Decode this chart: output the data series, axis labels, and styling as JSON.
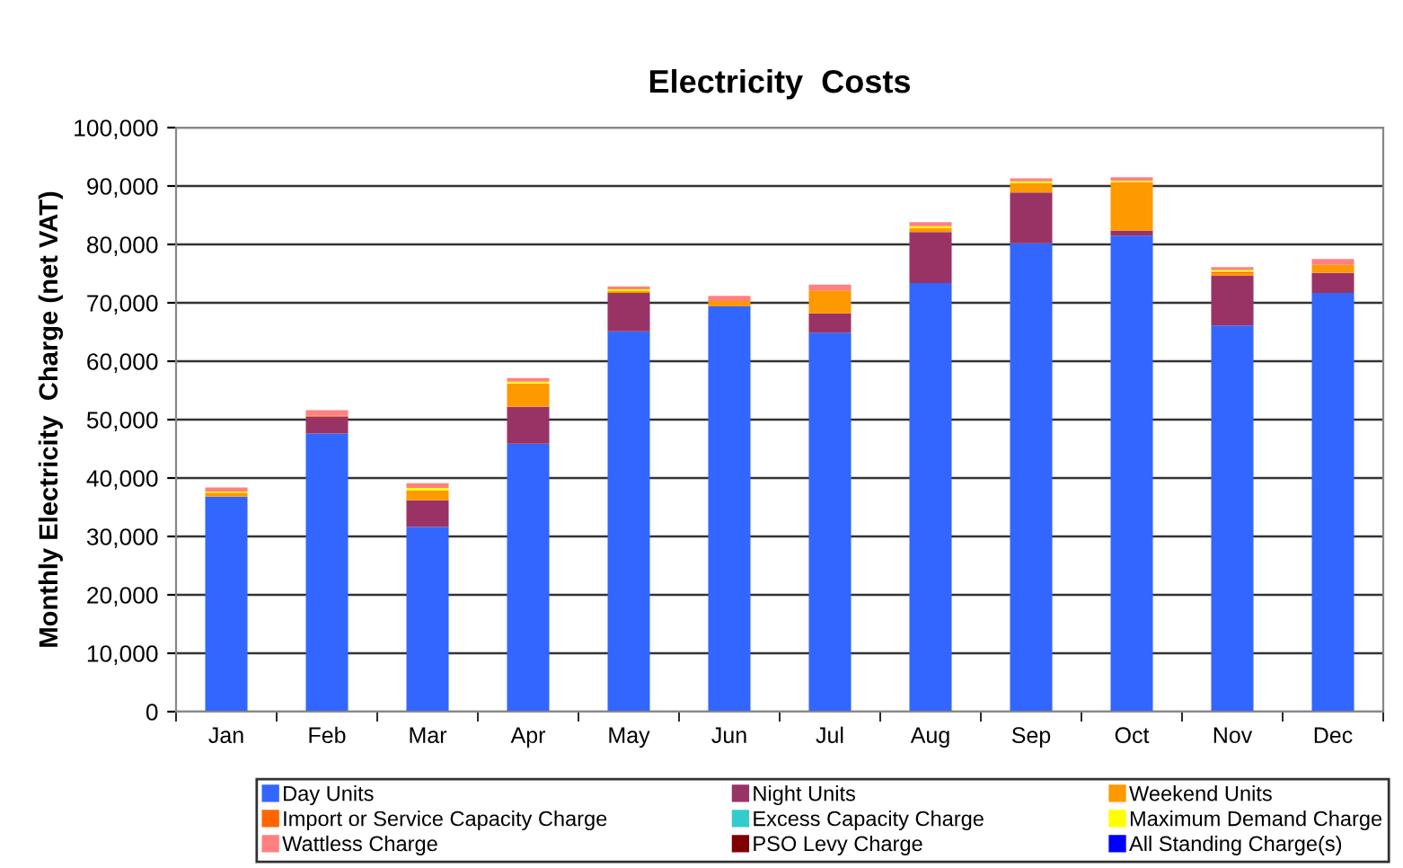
{
  "chart_data": {
    "type": "bar",
    "stacked": true,
    "title": "Electricity  Costs",
    "ylabel": "Monthly Electricity  Charge (net VAT)",
    "categories": [
      "Jan",
      "Feb",
      "Mar",
      "Apr",
      "May",
      "Jun",
      "Jul",
      "Aug",
      "Sep",
      "Oct",
      "Nov",
      "Dec"
    ],
    "series": [
      {
        "name": "Day Units",
        "color": "#3366ff",
        "values": [
          36800,
          47600,
          31600,
          45900,
          65100,
          69400,
          64900,
          73400,
          80200,
          81500,
          66100,
          71700
        ]
      },
      {
        "name": "Night Units",
        "color": "#993366",
        "values": [
          0,
          2900,
          4600,
          6300,
          6600,
          0,
          3300,
          8700,
          8700,
          900,
          8500,
          3400
        ]
      },
      {
        "name": "Weekend Units",
        "color": "#ff9900",
        "values": [
          700,
          0,
          1700,
          4000,
          300,
          900,
          3900,
          700,
          1600,
          8300,
          400,
          1400
        ]
      },
      {
        "name": "Import or Service Capacity Charge",
        "color": "#ff6600",
        "values": [
          0,
          200,
          0,
          0,
          0,
          0,
          0,
          0,
          0,
          0,
          300,
          0
        ]
      },
      {
        "name": "Excess Capacity Charge",
        "color": "#33cccc",
        "values": [
          0,
          0,
          0,
          0,
          0,
          0,
          0,
          0,
          0,
          0,
          0,
          0
        ]
      },
      {
        "name": "Maximum Demand Charge",
        "color": "#ffff00",
        "values": [
          200,
          0,
          400,
          300,
          300,
          0,
          0,
          300,
          300,
          200,
          300,
          0
        ]
      },
      {
        "name": "Wattless Charge",
        "color": "#ff8080",
        "values": [
          700,
          900,
          800,
          600,
          500,
          900,
          1000,
          700,
          500,
          600,
          500,
          1000
        ]
      },
      {
        "name": "PSO Levy Charge",
        "color": "#800000",
        "values": [
          0,
          0,
          0,
          0,
          0,
          0,
          0,
          0,
          0,
          0,
          0,
          0
        ]
      },
      {
        "name": "All Standing Charge(s)",
        "color": "#0000ff",
        "values": [
          0,
          0,
          0,
          0,
          0,
          0,
          0,
          0,
          0,
          0,
          0,
          0
        ]
      }
    ],
    "ylim": [
      0,
      100000
    ],
    "yticks": [
      0,
      {
        "value": 10000,
        "label": "10,000"
      },
      {
        "value": 20000,
        "label": "20,000"
      },
      {
        "value": 30000,
        "label": "30,000"
      },
      {
        "value": 40000,
        "label": "40,000"
      },
      {
        "value": 50000,
        "label": "50,000"
      },
      {
        "value": 60000,
        "label": "60,000"
      },
      {
        "value": 70000,
        "label": "70,000"
      },
      {
        "value": 80000,
        "label": "80,000"
      },
      {
        "value": 90000,
        "label": "90,000"
      },
      {
        "value": 100000,
        "label": "100,000"
      }
    ],
    "grid": "y",
    "legend": "bottom"
  }
}
